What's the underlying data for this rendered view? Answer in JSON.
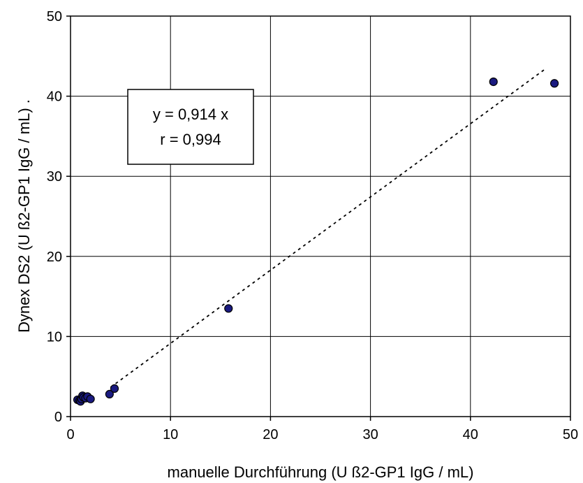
{
  "chart_data": {
    "type": "scatter",
    "title": "",
    "xlabel": "manuelle Durchführung (U  ß2-GP1 IgG / mL)",
    "ylabel": "Dynex DS2 (U  ß2-GP1 IgG / mL)   .",
    "xlim": [
      0,
      50
    ],
    "ylim": [
      0,
      50
    ],
    "xticks": [
      "0",
      "10",
      "20",
      "30",
      "40",
      "50"
    ],
    "yticks": [
      "0",
      "10",
      "20",
      "30",
      "40",
      "50"
    ],
    "grid": true,
    "legend": "none",
    "point_color": "#1a1a80",
    "series": [
      {
        "points": [
          {
            "x": 0.7,
            "y": 2.1
          },
          {
            "x": 0.9,
            "y": 2.0
          },
          {
            "x": 1.0,
            "y": 1.9
          },
          {
            "x": 1.1,
            "y": 2.2
          },
          {
            "x": 1.2,
            "y": 2.6
          },
          {
            "x": 1.3,
            "y": 2.4
          },
          {
            "x": 1.5,
            "y": 2.3
          },
          {
            "x": 1.7,
            "y": 2.5
          },
          {
            "x": 2.0,
            "y": 2.2
          },
          {
            "x": 3.9,
            "y": 2.8
          },
          {
            "x": 4.4,
            "y": 3.5
          },
          {
            "x": 15.8,
            "y": 13.5
          },
          {
            "x": 42.3,
            "y": 41.8
          },
          {
            "x": 48.4,
            "y": 41.6
          }
        ]
      }
    ],
    "trendline": {
      "style": "dotted",
      "slope": 0.914,
      "x_start": 4.0,
      "x_end": 47.4
    },
    "annotation": {
      "lines": [
        "y = 0,914 x",
        "r = 0,994"
      ]
    }
  }
}
